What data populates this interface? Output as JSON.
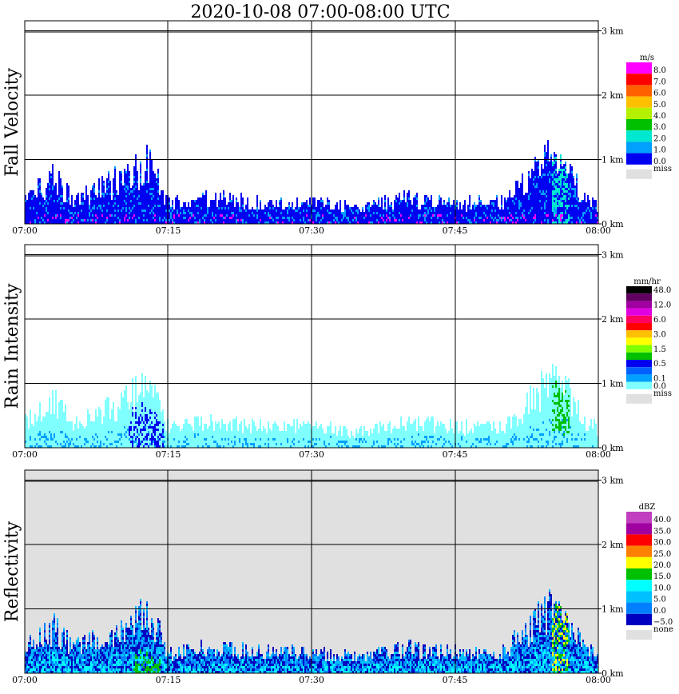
{
  "title": "2020-10-08   07:00-08:00 UTC",
  "x_ticks": [
    "07:00",
    "07:15",
    "07:30",
    "07:45",
    "08:00"
  ],
  "height_ticks": [
    "3 km",
    "2 km",
    "1 km",
    "0 km"
  ],
  "panels": [
    {
      "ylabel": "Fall Velocity",
      "unit": "m/s",
      "background": "#ffffff",
      "legend": [
        {
          "label": "8.0",
          "color": "#ff00ff"
        },
        {
          "label": "7.0",
          "color": "#ff0000"
        },
        {
          "label": "6.0",
          "color": "#ff6000"
        },
        {
          "label": "5.0",
          "color": "#ffc000"
        },
        {
          "label": "4.0",
          "color": "#b4f000"
        },
        {
          "label": "3.0",
          "color": "#00c000"
        },
        {
          "label": "2.0",
          "color": "#00e8d0"
        },
        {
          "label": "1.0",
          "color": "#00a0ff"
        },
        {
          "label": "0.0",
          "color": "#0000f0"
        }
      ],
      "missing_label": "miss"
    },
    {
      "ylabel": "Rain Intensity",
      "unit": "mm/hr",
      "background": "#ffffff",
      "legend": [
        {
          "label": "48.0",
          "color": "#000000"
        },
        {
          "label": "",
          "color": "#600060"
        },
        {
          "label": "12.0",
          "color": "#a000a0"
        },
        {
          "label": "",
          "color": "#e000e0"
        },
        {
          "label": "6.0",
          "color": "#ff0060"
        },
        {
          "label": "",
          "color": "#ff0000"
        },
        {
          "label": "3.0",
          "color": "#ffc000"
        },
        {
          "label": "",
          "color": "#ffff00"
        },
        {
          "label": "1.5",
          "color": "#80ff00"
        },
        {
          "label": "",
          "color": "#00c000"
        },
        {
          "label": "0.5",
          "color": "#0000f0"
        },
        {
          "label": "",
          "color": "#0060ff"
        },
        {
          "label": "0.1",
          "color": "#00a0ff"
        },
        {
          "label": "0.0",
          "color": "#80ffff"
        }
      ],
      "missing_label": "miss"
    },
    {
      "ylabel": "Reflectivity",
      "unit": "dBZ",
      "background": "#e0e0e0",
      "legend": [
        {
          "label": "40.0",
          "color": "#c040c0"
        },
        {
          "label": "35.0",
          "color": "#a000a0"
        },
        {
          "label": "30.0",
          "color": "#ff0000"
        },
        {
          "label": "25.0",
          "color": "#ff8000"
        },
        {
          "label": "20.0",
          "color": "#ffff00"
        },
        {
          "label": "15.0",
          "color": "#00c000"
        },
        {
          "label": "10.0",
          "color": "#00ffff"
        },
        {
          "label": "5.0",
          "color": "#00c0ff"
        },
        {
          "label": "0.0",
          "color": "#0080ff"
        },
        {
          "label": "−5.0",
          "color": "#0000c0"
        }
      ],
      "missing_label": "none"
    }
  ],
  "chart_data": {
    "type": "heatmap",
    "title": "2020-10-08   07:00-08:00 UTC",
    "x_range": [
      "07:00",
      "08:00"
    ],
    "y_range_km": [
      0,
      3.2
    ],
    "series": [
      {
        "name": "Fall Velocity",
        "unit": "m/s"
      },
      {
        "name": "Rain Intensity",
        "unit": "mm/hr"
      },
      {
        "name": "Reflectivity",
        "unit": "dBZ"
      }
    ],
    "echo_top_km": [
      {
        "time": "07:00",
        "top": 0.5
      },
      {
        "time": "07:03",
        "top": 0.9
      },
      {
        "time": "07:05",
        "top": 0.5
      },
      {
        "time": "07:08",
        "top": 0.7
      },
      {
        "time": "07:11",
        "top": 1.0
      },
      {
        "time": "07:13",
        "top": 1.2
      },
      {
        "time": "07:15",
        "top": 0.4
      },
      {
        "time": "07:20",
        "top": 0.5
      },
      {
        "time": "07:25",
        "top": 0.4
      },
      {
        "time": "07:30",
        "top": 0.4
      },
      {
        "time": "07:35",
        "top": 0.3
      },
      {
        "time": "07:40",
        "top": 0.5
      },
      {
        "time": "07:45",
        "top": 0.4
      },
      {
        "time": "07:50",
        "top": 0.4
      },
      {
        "time": "07:55",
        "top": 1.3
      },
      {
        "time": "08:00",
        "top": 0.3
      }
    ]
  }
}
